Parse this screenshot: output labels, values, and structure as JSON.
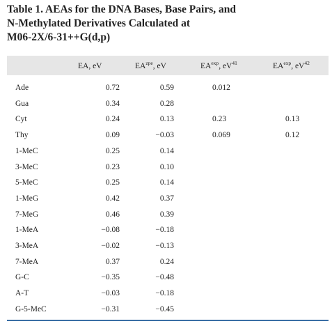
{
  "title": [
    "Table 1.  AEAs for the DNA Bases, Base Pairs, and",
    "N-Methylated Derivatives Calculated at",
    "M06-2X/6-31++G(d,p)"
  ],
  "table": {
    "header": [
      {
        "text": "EA, eV"
      },
      {
        "text": "EA",
        "sup": "zpe",
        "after": ", eV"
      },
      {
        "text": "EA",
        "sup": "exp",
        "after": ", eV",
        "sup2": "41"
      },
      {
        "text": "EA",
        "sup": "exp",
        "after": ", eV",
        "sup2": "42"
      }
    ],
    "rows": [
      [
        "Ade",
        "0.72",
        "0.59",
        "0.012",
        null
      ],
      [
        "Gua",
        "0.34",
        "0.28",
        null,
        null
      ],
      [
        "Cyt",
        "0.24",
        "0.13",
        "0.23",
        "0.13"
      ],
      [
        "Thy",
        "0.09",
        "−0.03",
        "0.069",
        "0.12"
      ],
      [
        "1-MeC",
        "0.25",
        "0.14",
        null,
        null
      ],
      [
        "3-MeC",
        "0.23",
        "0.10",
        null,
        null
      ],
      [
        "5-MeC",
        "0.25",
        "0.14",
        null,
        null
      ],
      [
        "1-MeG",
        "0.42",
        "0.37",
        null,
        null
      ],
      [
        "7-MeG",
        "0.46",
        "0.39",
        null,
        null
      ],
      [
        "1-MeA",
        "−0.08",
        "−0.18",
        null,
        null
      ],
      [
        "3-MeA",
        "−0.02",
        "−0.13",
        null,
        null
      ],
      [
        "7-MeA",
        "0.37",
        "0.24",
        null,
        null
      ],
      [
        "G-C",
        "−0.35",
        "−0.48",
        null,
        null
      ],
      [
        "A-T",
        "−0.03",
        "−0.18",
        null,
        null
      ],
      [
        "G-5-MeC",
        "−0.31",
        "−0.45",
        null,
        null
      ]
    ]
  }
}
